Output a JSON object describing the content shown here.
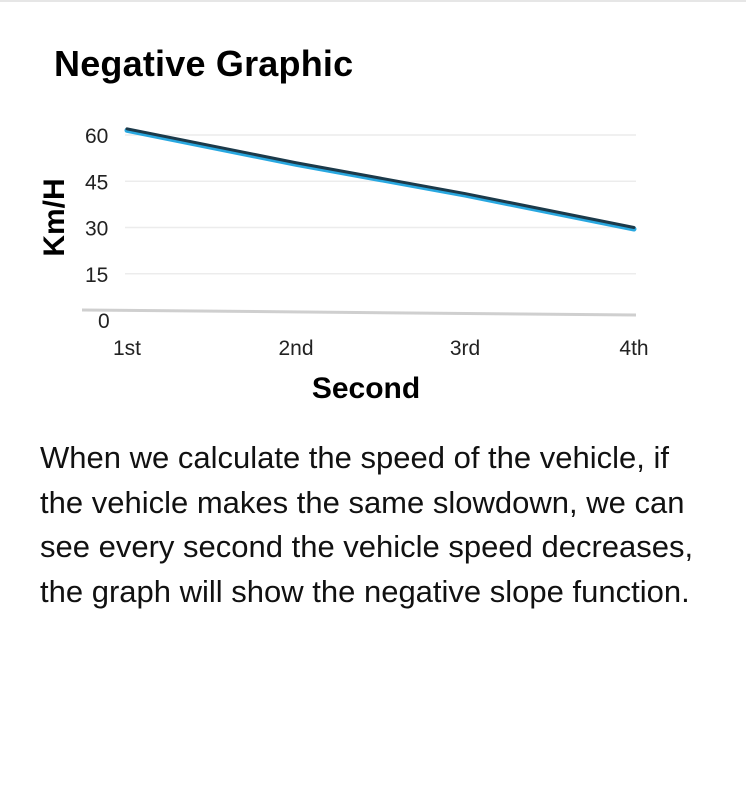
{
  "card": {
    "title": "Negative Graphic",
    "description": "When we calculate the speed of the vehicle, if the vehicle makes the same slowdown, we can see every second the vehicle speed decreases, the graph will show the negative slope function."
  },
  "chart_data": {
    "type": "line",
    "title": "",
    "xlabel": "Second",
    "ylabel": "Km/H",
    "categories": [
      "1st",
      "2nd",
      "3rd",
      "4th"
    ],
    "yticks": [
      0,
      15,
      30,
      45,
      60
    ],
    "ylim": [
      0,
      60
    ],
    "grid": true,
    "series": [
      {
        "values": [
          62,
          51,
          41,
          30
        ],
        "color": "#1c3a4a",
        "highlight": "#29a8e0"
      }
    ]
  }
}
